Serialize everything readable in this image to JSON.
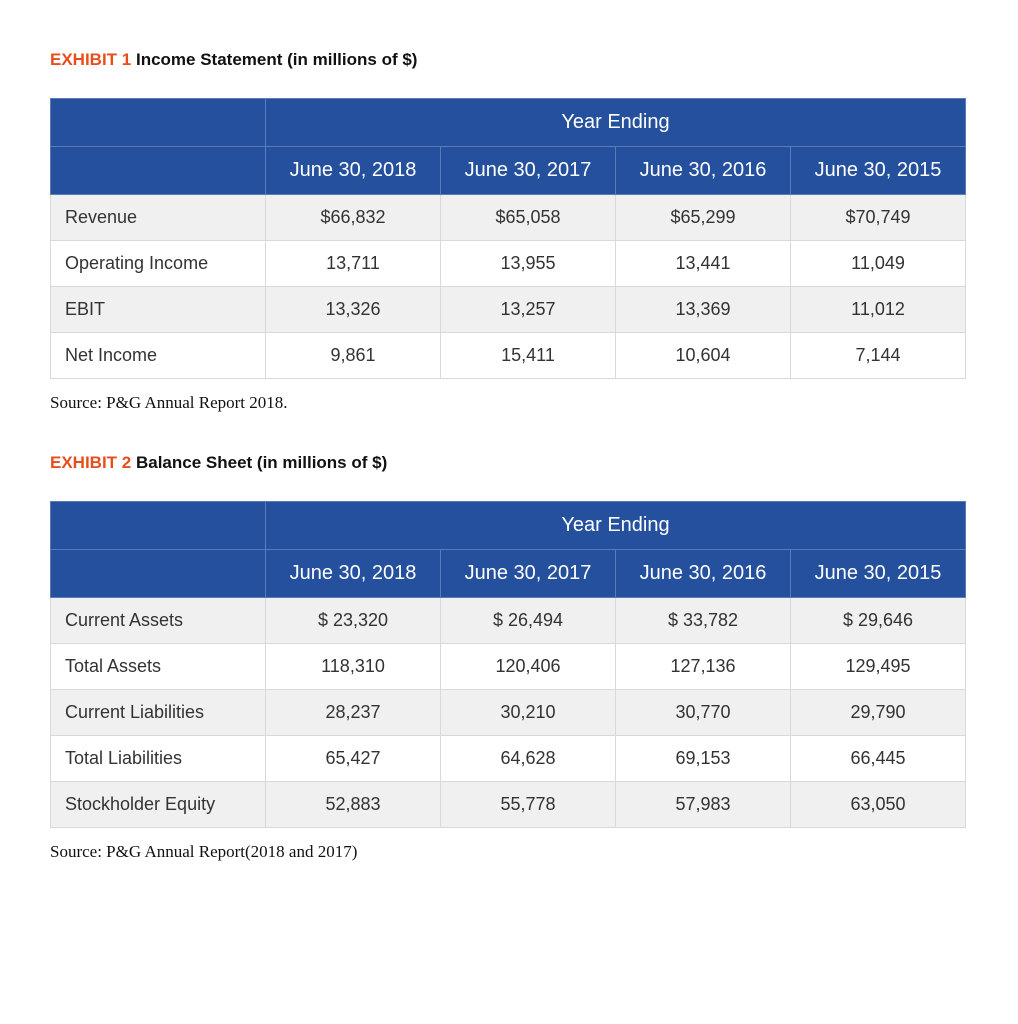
{
  "exhibit1": {
    "label": "EXHIBIT 1",
    "title": " Income Statement (in millions of $)",
    "super_header": "Year Ending",
    "columns": [
      "June 30, 2018",
      "June 30, 2017",
      "June 30, 2016",
      "June 30, 2015"
    ],
    "rows": [
      {
        "label": "Revenue",
        "values": [
          "$66,832",
          "$65,058",
          "$65,299",
          "$70,749"
        ]
      },
      {
        "label": "Operating Income",
        "values": [
          "13,711",
          "13,955",
          "13,441",
          "11,049"
        ]
      },
      {
        "label": "EBIT",
        "values": [
          "13,326",
          "13,257",
          "13,369",
          "11,012"
        ]
      },
      {
        "label": "Net Income",
        "values": [
          "9,861",
          "15,411",
          "10,604",
          "7,144"
        ]
      }
    ],
    "source": "Source: P&G Annual Report 2018.",
    "style": {
      "header_bg": "#24509d",
      "header_border": "#5a7bb8",
      "header_text": "#ffffff",
      "row_shade": "#f0f0f0",
      "row_plain": "#ffffff",
      "cell_border": "#d9d9d9",
      "label_color": "#e84e1b",
      "body_font_size": 18,
      "header_font_size": 20
    }
  },
  "exhibit2": {
    "label": "EXHIBIT 2",
    "title": " Balance Sheet (in millions of $)",
    "super_header": "Year Ending",
    "columns": [
      "June 30, 2018",
      "June 30, 2017",
      "June 30, 2016",
      "June 30, 2015"
    ],
    "rows": [
      {
        "label": "Current Assets",
        "values": [
          "$ 23,320",
          "$ 26,494",
          "$ 33,782",
          "$ 29,646"
        ]
      },
      {
        "label": "Total Assets",
        "values": [
          "118,310",
          "120,406",
          "127,136",
          "129,495"
        ]
      },
      {
        "label": "Current Liabilities",
        "values": [
          "28,237",
          "30,210",
          "30,770",
          "29,790"
        ]
      },
      {
        "label": "Total Liabilities",
        "values": [
          "65,427",
          "64,628",
          "69,153",
          "66,445"
        ]
      },
      {
        "label": "Stockholder Equity",
        "values": [
          "52,883",
          "55,778",
          "57,983",
          "63,050"
        ]
      }
    ],
    "source": "Source: P&G Annual Report(2018 and 2017)",
    "style": {
      "header_bg": "#24509d",
      "header_border": "#5a7bb8",
      "header_text": "#ffffff",
      "row_shade": "#f0f0f0",
      "row_plain": "#ffffff",
      "cell_border": "#d9d9d9",
      "label_color": "#e84e1b",
      "body_font_size": 18,
      "header_font_size": 20
    }
  }
}
